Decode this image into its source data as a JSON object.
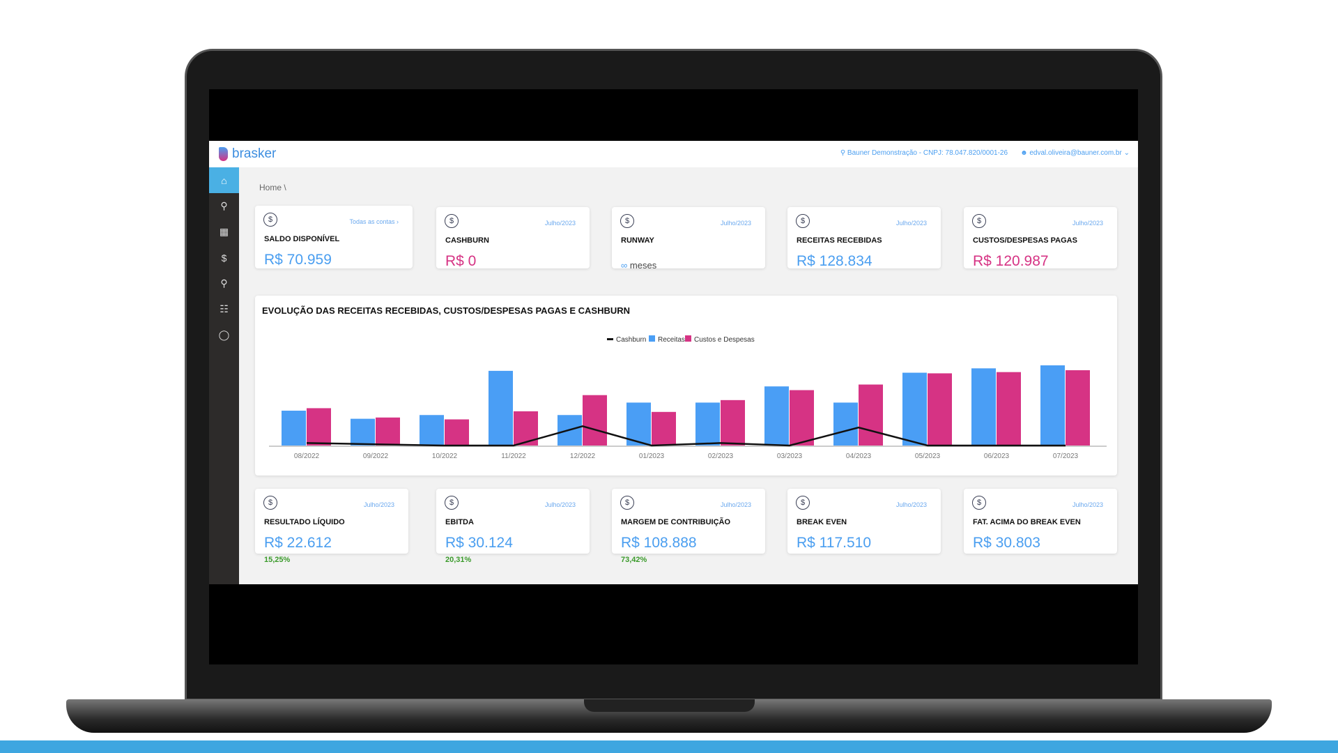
{
  "header": {
    "brand": "brasker",
    "company": "Bauner Demonstração - CNPJ: 78.047.820/0001-26",
    "user": "edval.oliveira@bauner.com.br"
  },
  "sidebar": {
    "items": [
      {
        "icon": "home-icon"
      },
      {
        "icon": "analytics-search-icon"
      },
      {
        "icon": "calculator-icon"
      },
      {
        "icon": "dollar-icon"
      },
      {
        "icon": "user-edit-icon"
      },
      {
        "icon": "clipboard-user-icon"
      },
      {
        "icon": "account-circle-icon"
      }
    ]
  },
  "breadcrumb": {
    "home": "Home",
    "sep": "\\"
  },
  "top_cards": [
    {
      "label": "SALDO DISPONÍVEL",
      "link": "Todas as contas ›",
      "value": "R$ 70.959",
      "color": "blue"
    },
    {
      "label": "CASHBURN",
      "period": "Julho/2023",
      "value": "R$ 0",
      "color": "pink"
    },
    {
      "label": "RUNWAY",
      "period": "Julho/2023",
      "value": "∞",
      "unit": "meses"
    },
    {
      "label": "RECEITAS RECEBIDAS",
      "period": "Julho/2023",
      "value": "R$ 128.834",
      "color": "blue"
    },
    {
      "label": "CUSTOS/DESPESAS PAGAS",
      "period": "Julho/2023",
      "value": "R$ 120.987",
      "color": "pink"
    }
  ],
  "bottom_cards": [
    {
      "label": "RESULTADO LÍQUIDO",
      "period": "Julho/2023",
      "value": "R$ 22.612",
      "pct": "15,25%"
    },
    {
      "label": "EBITDA",
      "period": "Julho/2023",
      "value": "R$ 30.124",
      "pct": "20,31%"
    },
    {
      "label": "MARGEM DE CONTRIBUIÇÃO",
      "period": "Julho/2023",
      "value": "R$ 108.888",
      "pct": "73,42%"
    },
    {
      "label": "BREAK EVEN",
      "period": "Julho/2023",
      "value": "R$ 117.510"
    },
    {
      "label": "FAT. ACIMA DO BREAK EVEN",
      "period": "Julho/2023",
      "value": "R$ 30.803"
    }
  ],
  "chart_data": {
    "type": "bar",
    "title": "EVOLUÇÃO DAS RECEITAS RECEBIDAS, CUSTOS/DESPESAS PAGAS E CASHBURN",
    "legend_position": "top-center",
    "grid": false,
    "categories": [
      "08/2022",
      "09/2022",
      "10/2022",
      "11/2022",
      "12/2022",
      "01/2023",
      "02/2023",
      "03/2023",
      "04/2023",
      "05/2023",
      "06/2023",
      "07/2023"
    ],
    "series": [
      {
        "name": "Cashburn",
        "type": "line",
        "color": "#111111",
        "values": [
          4000,
          2000,
          0,
          0,
          31000,
          0,
          4000,
          0,
          29000,
          0,
          0,
          0
        ]
      },
      {
        "name": "Receitas",
        "type": "bar",
        "color": "#4a9ef5",
        "values": [
          56000,
          43000,
          49000,
          120000,
          49000,
          69000,
          69000,
          95000,
          69000,
          117000,
          124000,
          128834
        ]
      },
      {
        "name": "Custos e Despesas",
        "type": "bar",
        "color": "#d63384",
        "values": [
          60000,
          45000,
          42000,
          55000,
          81000,
          54000,
          73000,
          89000,
          98000,
          116000,
          118000,
          120987
        ]
      }
    ],
    "ylim": [
      0,
      130000
    ]
  }
}
